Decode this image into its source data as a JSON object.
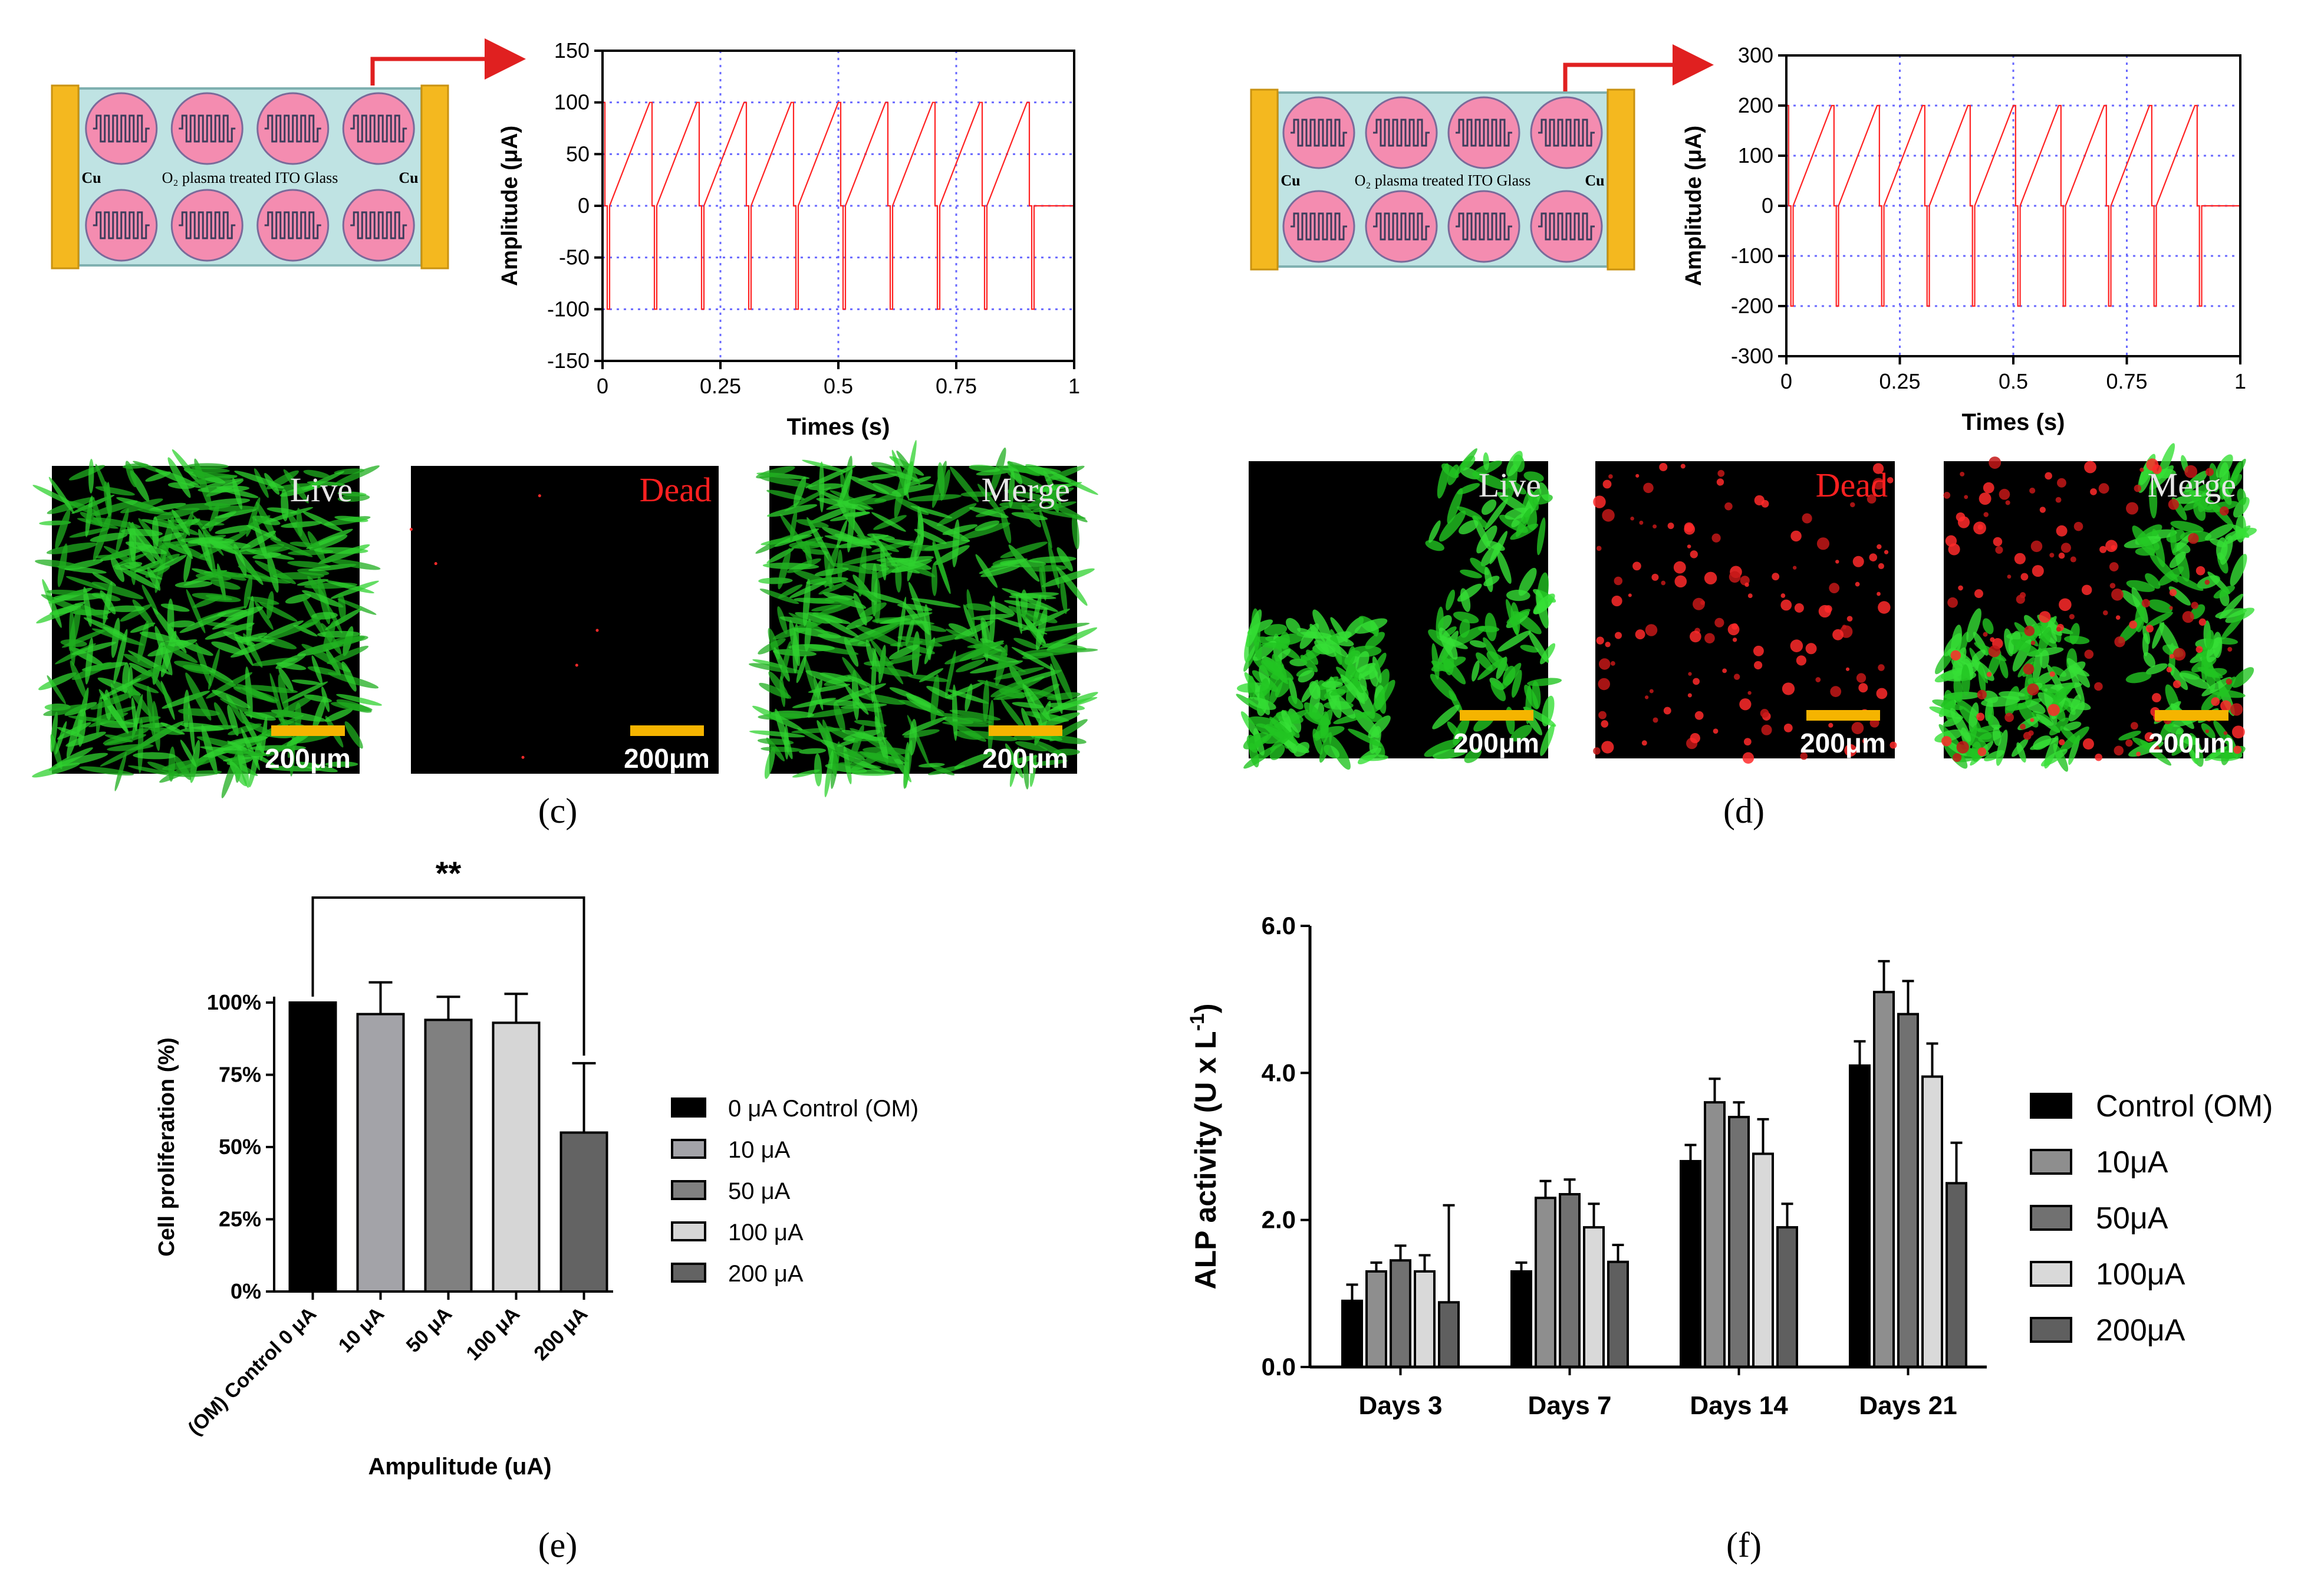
{
  "panels": {
    "c": {
      "label": "(c)",
      "device": {
        "left_electrode": "Cu",
        "right_electrode": "Cu",
        "substrate": "O₂ plasma treated ITO Glass"
      },
      "micro": [
        {
          "title": "Live",
          "title_color": "#e6e6e6",
          "kind": "live",
          "scale": "200μm"
        },
        {
          "title": "Dead",
          "title_color": "#ff2020",
          "kind": "dead",
          "scale": "200μm"
        },
        {
          "title": "Merge",
          "title_color": "#e6e6e6",
          "kind": "live",
          "scale": "200μm"
        }
      ]
    },
    "d": {
      "label": "(d)",
      "device": {
        "left_electrode": "Cu",
        "right_electrode": "Cu",
        "substrate": "O₂ plasma treated ITO Glass"
      },
      "micro": [
        {
          "title": "Live",
          "title_color": "#e6e6e6",
          "kind": "live-sparse",
          "scale": "200μm"
        },
        {
          "title": "Dead",
          "title_color": "#ff2020",
          "kind": "dead-dense",
          "scale": "200μm"
        },
        {
          "title": "Merge",
          "title_color": "#e6e6e6",
          "kind": "merge",
          "scale": "200μm"
        }
      ]
    },
    "e": {
      "label": "(e)"
    },
    "f": {
      "label": "(f)"
    }
  },
  "colors": {
    "signal": "#ff2222",
    "arrow": "#e02020",
    "grid": "#6a6aff",
    "cu": "#f4b81f",
    "glass": "#bfe3e3",
    "well": "#f48cb0",
    "scale_bar": "#f5b400",
    "micro_green": "#2dd62d",
    "micro_red": "#ff2a2a"
  },
  "chart_data": [
    {
      "id": "c-waveform",
      "type": "line",
      "title": "",
      "xlabel": "Times (s)",
      "ylabel": "Amplitude (μA)",
      "xlim": [
        0,
        1
      ],
      "ylim": [
        -150,
        150
      ],
      "xticks": [
        0,
        0.25,
        0.5,
        0.75,
        1
      ],
      "xtick_labels": [
        "0",
        "0.25",
        "0.5",
        "0.75",
        "1"
      ],
      "yticks": [
        150,
        100,
        50,
        0,
        -50,
        -100,
        -150
      ],
      "ytick_labels": [
        "150",
        "100",
        "50",
        "0",
        "-50",
        "-100",
        "-150"
      ],
      "grid": "dotted",
      "amplitude": 100,
      "pulse_period": 0.1,
      "pulse_width": 0.005,
      "interphase_gap": 0.005
    },
    {
      "id": "d-waveform",
      "type": "line",
      "title": "",
      "xlabel": "Times (s)",
      "ylabel": "Amplitude (μA)",
      "xlim": [
        0,
        1
      ],
      "ylim": [
        -300,
        300
      ],
      "xticks": [
        0,
        0.25,
        0.5,
        0.75,
        1
      ],
      "xtick_labels": [
        "0",
        "0.25",
        "0.5",
        "0.75",
        "1"
      ],
      "yticks": [
        300,
        200,
        100,
        0,
        -100,
        -200,
        -300
      ],
      "ytick_labels": [
        "300",
        "200",
        "100",
        "0",
        "-100",
        "-200",
        "-300"
      ],
      "grid": "dotted",
      "amplitude": 200,
      "pulse_period": 0.1,
      "pulse_width": 0.005,
      "interphase_gap": 0.005
    },
    {
      "id": "e-proliferation",
      "type": "bar",
      "title": "",
      "xlabel": "Ampulitude (uA)",
      "ylabel": "Cell proliferation (%)",
      "ylim": [
        0,
        100
      ],
      "yticks": [
        0,
        25,
        50,
        75,
        100
      ],
      "ytick_labels": [
        "0%",
        "25%",
        "50%",
        "75%",
        "100%"
      ],
      "categories": [
        "(OM) Control 0 μA",
        "10 μA",
        "50 μA",
        "100 μA",
        "200 μA"
      ],
      "values": [
        100,
        96,
        94,
        93,
        55
      ],
      "errors": [
        0,
        11,
        8,
        10,
        24
      ],
      "colors": [
        "#000000",
        "#a3a3a8",
        "#808080",
        "#d6d6d6",
        "#636363"
      ],
      "legend": [
        "0 μA Control (OM)",
        "10 μA",
        "50 μA",
        "100 μA",
        "200 μA"
      ],
      "legend_position": "right",
      "significance": {
        "from": 0,
        "to": 4,
        "label": "**"
      }
    },
    {
      "id": "f-alp",
      "type": "bar",
      "title": "",
      "xlabel": "",
      "ylabel": "ALP activity (U x L-1)",
      "ylabel_main": "ALP activity (U x L",
      "ylabel_sup": "-1",
      "ylabel_close": ")",
      "ylim": [
        0,
        6
      ],
      "yticks": [
        0,
        2,
        4,
        6
      ],
      "ytick_labels": [
        "0.0",
        "2.0",
        "4.0",
        "6.0"
      ],
      "categories": [
        "Days 3",
        "Days 7",
        "Days 14",
        "Days 21"
      ],
      "series": [
        {
          "name": "Control (OM)",
          "color": "#000000",
          "values": [
            0.9,
            1.3,
            2.8,
            4.1
          ],
          "errors": [
            0.22,
            0.12,
            0.22,
            0.33
          ]
        },
        {
          "name": "10μA",
          "color": "#8e8e8e",
          "values": [
            1.3,
            2.3,
            3.6,
            5.1
          ],
          "errors": [
            0.12,
            0.23,
            0.32,
            0.42
          ]
        },
        {
          "name": "50μA",
          "color": "#717171",
          "values": [
            1.45,
            2.35,
            3.4,
            4.8
          ],
          "errors": [
            0.2,
            0.2,
            0.2,
            0.45
          ]
        },
        {
          "name": "100μA",
          "color": "#d9d9d9",
          "values": [
            1.3,
            1.9,
            2.9,
            3.95
          ],
          "errors": [
            0.22,
            0.32,
            0.47,
            0.45
          ]
        },
        {
          "name": "200μA",
          "color": "#5f5f5f",
          "values": [
            0.88,
            1.43,
            1.9,
            2.5
          ],
          "errors": [
            1.32,
            0.23,
            0.32,
            0.55
          ]
        }
      ],
      "legend_position": "right"
    }
  ]
}
